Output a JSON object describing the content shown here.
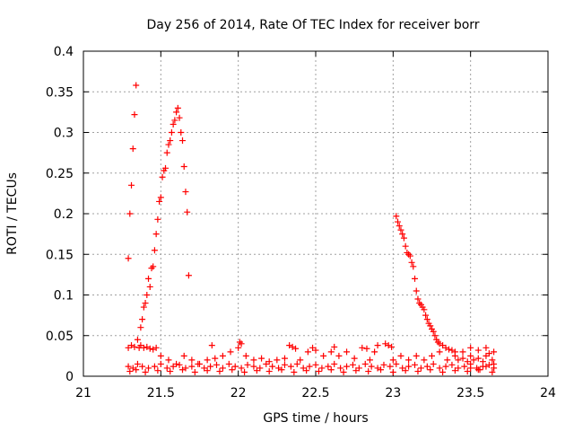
{
  "chart_data": {
    "type": "scatter",
    "title": "Day 256 of 2014, Rate Of TEC Index for receiver borr",
    "xlabel": "GPS time / hours",
    "ylabel": "ROTI / TECUs",
    "xlim": [
      21,
      24
    ],
    "ylim": [
      0,
      0.4
    ],
    "xticks": [
      "21",
      "21.5",
      "22",
      "22.5",
      "23",
      "23.5",
      "24"
    ],
    "yticks": [
      "0",
      "0.05",
      "0.1",
      "0.15",
      "0.2",
      "0.25",
      "0.3",
      "0.35",
      "0.4"
    ],
    "grid": true,
    "marker": "+",
    "color": "#ff0000",
    "series": [
      {
        "name": "ROTI",
        "x": [
          21.29,
          21.3,
          21.31,
          21.32,
          21.33,
          21.34,
          21.36,
          21.37,
          21.38,
          21.39,
          21.4,
          21.41,
          21.42,
          21.43,
          21.44,
          21.45,
          21.46,
          21.47,
          21.48,
          21.49,
          21.5,
          21.51,
          21.52,
          21.53,
          21.54,
          21.55,
          21.56,
          21.57,
          21.58,
          21.59,
          21.6,
          21.61,
          21.62,
          21.63,
          21.64,
          21.65,
          21.66,
          21.67,
          21.68,
          23.02,
          23.03,
          23.04,
          23.05,
          23.06,
          23.07,
          23.08,
          23.09,
          23.1,
          23.11,
          23.12,
          23.13,
          23.14,
          23.15,
          23.16,
          23.17,
          23.18,
          23.19,
          23.2,
          23.21,
          23.22,
          23.23,
          23.24,
          23.25,
          23.26,
          23.27,
          23.28,
          23.29,
          23.3,
          23.32,
          23.34,
          23.36,
          23.38,
          23.4,
          21.29,
          21.31,
          21.33,
          21.35,
          21.37,
          21.39,
          21.41,
          21.43,
          21.45,
          21.47,
          21.5,
          21.55,
          21.6,
          21.65,
          21.7,
          21.75,
          21.8,
          21.83,
          21.85,
          21.9,
          21.95,
          22.0,
          22.01,
          22.02,
          22.05,
          22.1,
          22.15,
          22.2,
          22.25,
          22.3,
          22.33,
          22.35,
          22.37,
          22.4,
          22.45,
          22.48,
          22.5,
          22.55,
          22.6,
          22.62,
          22.65,
          22.7,
          22.75,
          22.8,
          22.83,
          22.85,
          22.88,
          22.9,
          22.95,
          22.97,
          22.99,
          23.0,
          23.05,
          23.1,
          23.15,
          23.2,
          23.25,
          23.3,
          23.35,
          23.4,
          23.45,
          23.5,
          23.55,
          23.6,
          23.65,
          21.29,
          21.32,
          21.35,
          21.38,
          21.42,
          21.46,
          21.5,
          21.54,
          21.58,
          21.62,
          21.66,
          21.7,
          21.74,
          21.78,
          21.82,
          21.86,
          21.9,
          21.94,
          21.98,
          22.02,
          22.06,
          22.1,
          22.14,
          22.18,
          22.22,
          22.26,
          22.3,
          22.34,
          22.38,
          22.42,
          22.46,
          22.5,
          22.54,
          22.58,
          22.62,
          22.66,
          22.7,
          22.74,
          22.78,
          22.82,
          22.86,
          22.9,
          22.94,
          22.98,
          23.02,
          23.06,
          23.1,
          23.14,
          23.18,
          23.22,
          23.26,
          23.3,
          23.34,
          23.38,
          23.42,
          23.46,
          23.5,
          23.54,
          23.58,
          23.62,
          23.65,
          21.3,
          21.34,
          21.4,
          21.48,
          21.56,
          21.64,
          21.72,
          21.8,
          21.88,
          21.96,
          22.04,
          22.12,
          22.2,
          22.28,
          22.36,
          22.44,
          22.52,
          22.6,
          22.68,
          22.76,
          22.84,
          22.92,
          23.0,
          23.08,
          23.16,
          23.24,
          23.32,
          23.4,
          23.48,
          23.56,
          23.64,
          23.42,
          23.45,
          23.48,
          23.5,
          23.52,
          23.55,
          23.58,
          23.6,
          23.62,
          23.64,
          23.65,
          23.5,
          23.55,
          23.6,
          23.65
        ],
        "y": [
          0.145,
          0.2,
          0.235,
          0.28,
          0.322,
          0.358,
          0.035,
          0.06,
          0.07,
          0.085,
          0.09,
          0.1,
          0.12,
          0.11,
          0.133,
          0.135,
          0.155,
          0.175,
          0.193,
          0.215,
          0.22,
          0.245,
          0.253,
          0.256,
          0.275,
          0.285,
          0.29,
          0.3,
          0.31,
          0.315,
          0.325,
          0.33,
          0.318,
          0.3,
          0.29,
          0.258,
          0.227,
          0.202,
          0.124,
          0.197,
          0.19,
          0.185,
          0.18,
          0.175,
          0.17,
          0.16,
          0.152,
          0.15,
          0.148,
          0.14,
          0.135,
          0.12,
          0.105,
          0.095,
          0.09,
          0.088,
          0.085,
          0.082,
          0.075,
          0.07,
          0.065,
          0.062,
          0.058,
          0.055,
          0.05,
          0.045,
          0.042,
          0.04,
          0.038,
          0.035,
          0.033,
          0.032,
          0.03,
          0.035,
          0.038,
          0.036,
          0.045,
          0.038,
          0.035,
          0.036,
          0.034,
          0.033,
          0.035,
          0.025,
          0.02,
          0.015,
          0.025,
          0.02,
          0.015,
          0.02,
          0.038,
          0.022,
          0.025,
          0.03,
          0.035,
          0.042,
          0.04,
          0.025,
          0.02,
          0.022,
          0.018,
          0.02,
          0.022,
          0.038,
          0.036,
          0.034,
          0.02,
          0.03,
          0.035,
          0.032,
          0.025,
          0.03,
          0.036,
          0.025,
          0.03,
          0.022,
          0.035,
          0.034,
          0.02,
          0.03,
          0.038,
          0.04,
          0.038,
          0.036,
          0.02,
          0.025,
          0.02,
          0.025,
          0.02,
          0.025,
          0.03,
          0.02,
          0.025,
          0.03,
          0.035,
          0.032,
          0.035,
          0.03,
          0.012,
          0.01,
          0.015,
          0.012,
          0.01,
          0.012,
          0.015,
          0.01,
          0.012,
          0.014,
          0.01,
          0.012,
          0.015,
          0.01,
          0.012,
          0.014,
          0.01,
          0.015,
          0.012,
          0.01,
          0.014,
          0.012,
          0.01,
          0.015,
          0.012,
          0.01,
          0.014,
          0.012,
          0.015,
          0.01,
          0.012,
          0.014,
          0.01,
          0.012,
          0.015,
          0.01,
          0.012,
          0.014,
          0.01,
          0.015,
          0.012,
          0.01,
          0.014,
          0.012,
          0.015,
          0.01,
          0.012,
          0.014,
          0.01,
          0.012,
          0.015,
          0.01,
          0.012,
          0.014,
          0.01,
          0.012,
          0.015,
          0.01,
          0.012,
          0.014,
          0.01,
          0.006,
          0.008,
          0.005,
          0.007,
          0.006,
          0.008,
          0.005,
          0.007,
          0.006,
          0.008,
          0.005,
          0.007,
          0.006,
          0.008,
          0.005,
          0.007,
          0.006,
          0.008,
          0.005,
          0.007,
          0.006,
          0.008,
          0.005,
          0.007,
          0.006,
          0.008,
          0.005,
          0.007,
          0.006,
          0.008,
          0.005,
          0.02,
          0.022,
          0.018,
          0.025,
          0.02,
          0.022,
          0.018,
          0.025,
          0.028,
          0.02,
          0.015,
          0.01,
          0.008,
          0.012,
          0.01
        ]
      }
    ]
  }
}
